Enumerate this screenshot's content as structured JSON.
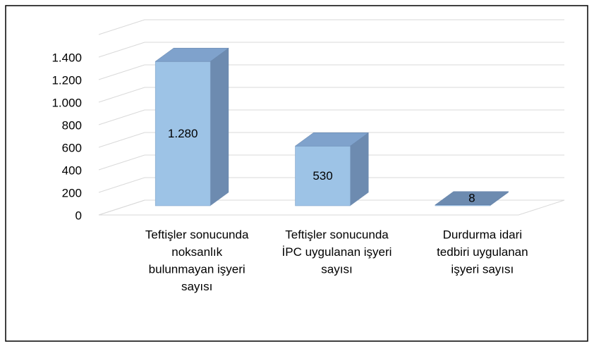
{
  "chart_data": {
    "type": "bar3d",
    "categories": [
      [
        "Teftişler sonucunda",
        "noksanlık",
        "bulunmayan işyeri",
        "sayısı"
      ],
      [
        "Teftişler sonucunda",
        "İPC uygulanan işyeri",
        "sayısı"
      ],
      [
        "Durdurma idari",
        "tedbiri uygulanan",
        "işyeri sayısı"
      ]
    ],
    "values": [
      1280,
      530,
      8
    ],
    "value_labels": [
      "1.280",
      "530",
      "8"
    ],
    "color": "#9dc3e6",
    "ylim": [
      0,
      1600
    ],
    "yticks": [
      0,
      200,
      400,
      600,
      800,
      {
        "value": 1000,
        "label": "1.000"
      },
      {
        "value": 1200,
        "label": "1.200"
      },
      {
        "value": 1400,
        "label": "1.400"
      }
    ],
    "grid": true
  }
}
